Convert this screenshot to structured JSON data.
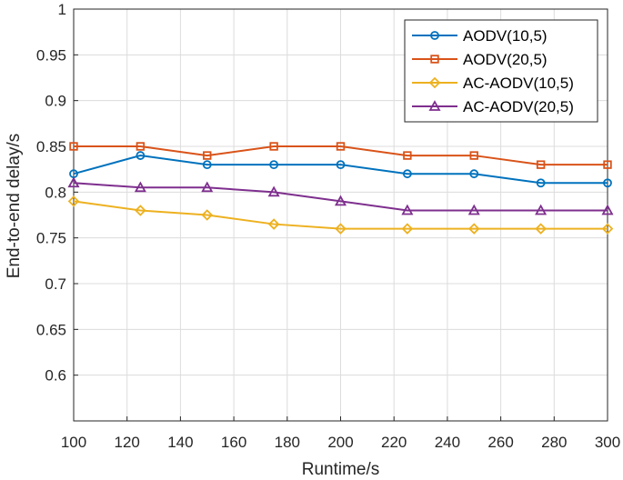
{
  "chart_data": {
    "type": "line",
    "title": "",
    "xlabel": "Runtime/s",
    "ylabel": "End-to-end delay/s",
    "xlim": [
      100,
      300
    ],
    "ylim": [
      0.55,
      1.0
    ],
    "x": [
      100,
      125,
      150,
      175,
      200,
      225,
      250,
      275,
      300
    ],
    "xticks": [
      "100",
      "120",
      "140",
      "160",
      "180",
      "200",
      "220",
      "240",
      "260",
      "280",
      "300"
    ],
    "yticks": [
      "0.6",
      "0.65",
      "0.7",
      "0.75",
      "0.8",
      "0.85",
      "0.9",
      "0.95",
      "1"
    ],
    "grid": true,
    "legend_position": "top-right",
    "series": [
      {
        "name": "AODV(10,5)",
        "color": "#0072BD",
        "marker": "circle",
        "values": [
          0.82,
          0.84,
          0.83,
          0.83,
          0.83,
          0.82,
          0.82,
          0.81,
          0.81
        ]
      },
      {
        "name": "AODV(20,5)",
        "color": "#D95319",
        "marker": "square",
        "values": [
          0.85,
          0.85,
          0.84,
          0.85,
          0.85,
          0.84,
          0.84,
          0.83,
          0.83
        ]
      },
      {
        "name": "AC-AODV(10,5)",
        "color": "#EDB120",
        "marker": "diamond",
        "values": [
          0.79,
          0.78,
          0.775,
          0.765,
          0.76,
          0.76,
          0.76,
          0.76,
          0.76
        ]
      },
      {
        "name": "AC-AODV(20,5)",
        "color": "#7E2F8E",
        "marker": "triangle",
        "values": [
          0.81,
          0.805,
          0.805,
          0.8,
          0.79,
          0.78,
          0.78,
          0.78,
          0.78
        ]
      }
    ]
  }
}
